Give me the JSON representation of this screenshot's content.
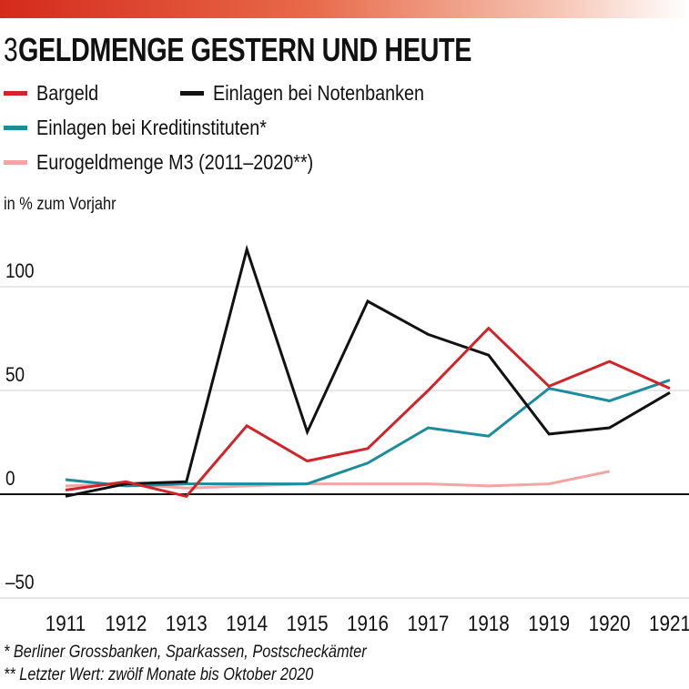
{
  "header": {
    "number": "3",
    "title": "GELDMENGE GESTERN UND HEUTE"
  },
  "legend": [
    {
      "label": "Bargeld",
      "color": "#d0232a"
    },
    {
      "label": "Einlagen bei Notenbanken",
      "color": "#111111"
    },
    {
      "label": "Einlagen bei Kreditinstituten*",
      "color": "#1a8c9c"
    },
    {
      "label": "Eurogeldmenge M3 (2011–2020**)",
      "color": "#f0a7a3"
    }
  ],
  "unit_label": "in % zum Vorjahr",
  "footnotes": [
    "* Berliner Grossbanken, Sparkassen, Postscheckämter",
    "** Letzter Wert: zwölf Monate bis Oktober 2020"
  ],
  "chart_data": {
    "type": "line",
    "title": "GELDMENGE GESTERN UND HEUTE",
    "ylabel": "in % zum Vorjahr",
    "xlabel": "",
    "categories": [
      "1911",
      "1912",
      "1913",
      "1914",
      "1915",
      "1916",
      "1917",
      "1918",
      "1919",
      "1920",
      "1921"
    ],
    "ylim": [
      -55,
      118
    ],
    "yticks": [
      -50,
      0,
      50,
      100
    ],
    "ytick_labels": [
      "–50",
      "0",
      "50",
      "100"
    ],
    "series": [
      {
        "name": "Bargeld",
        "color": "#d0232a",
        "values": [
          2,
          6,
          -1,
          33,
          16,
          22,
          50,
          80,
          52,
          64,
          51
        ]
      },
      {
        "name": "Einlagen bei Notenbanken",
        "color": "#111111",
        "values": [
          -1,
          5,
          6,
          118,
          30,
          93,
          77,
          67,
          29,
          32,
          49
        ]
      },
      {
        "name": "Einlagen bei Kreditinstituten*",
        "color": "#1a8c9c",
        "values": [
          7,
          4,
          5,
          5,
          5,
          15,
          32,
          28,
          51,
          45,
          55
        ]
      },
      {
        "name": "Eurogeldmenge M3 (2011–2020**)",
        "color": "#f0a7a3",
        "values": [
          4,
          5,
          3,
          4,
          5,
          5,
          5,
          4,
          5,
          11,
          null
        ]
      }
    ]
  }
}
